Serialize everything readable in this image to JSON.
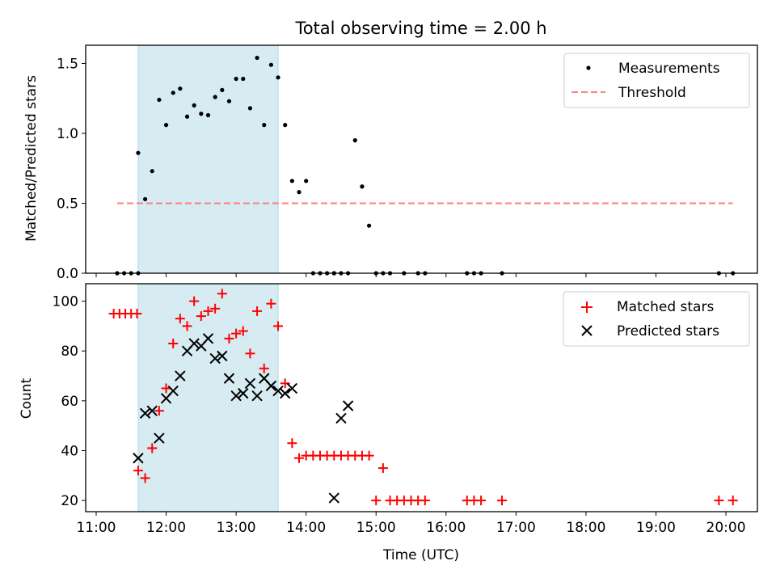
{
  "chart_data": [
    {
      "type": "scatter",
      "title": "Total observing time = 2.00 h",
      "xlabel": "",
      "ylabel": "Matched/Predicted stars",
      "ylim": [
        0.0,
        1.63
      ],
      "yticks": [
        "0.0",
        "0.5",
        "1.0",
        "1.5"
      ],
      "ytick_values": [
        0.0,
        0.5,
        1.0,
        1.5
      ],
      "xtick_hours": [
        11,
        12,
        13,
        14,
        15,
        16,
        17,
        18,
        19,
        20
      ],
      "xlim": [
        "11:00 - 0.15 h",
        "20:00 + 0.45 h"
      ],
      "highlight_span": {
        "from": "11:36",
        "to": "13:36",
        "color": "#add8e6"
      },
      "legend_position": "upper right",
      "series": [
        {
          "name": "Measurements",
          "marker": "dot",
          "color": "#000000",
          "x": [
            "11:18",
            "11:24",
            "11:30",
            "11:36",
            "11:36",
            "11:42",
            "11:48",
            "11:54",
            "12:00",
            "12:06",
            "12:12",
            "12:18",
            "12:24",
            "12:30",
            "12:36",
            "12:42",
            "12:48",
            "12:54",
            "13:00",
            "13:06",
            "13:12",
            "13:18",
            "13:24",
            "13:30",
            "13:36",
            "13:42",
            "13:48",
            "13:54",
            "14:00",
            "14:06",
            "14:12",
            "14:18",
            "14:24",
            "14:24",
            "14:30",
            "14:36",
            "14:42",
            "14:48",
            "14:54",
            "15:00",
            "15:06",
            "15:12",
            "15:24",
            "15:36",
            "15:42",
            "16:18",
            "16:24",
            "16:30",
            "16:48",
            "19:54",
            "20:06"
          ],
          "y": [
            0,
            0,
            0,
            0,
            0.86,
            0.53,
            0.73,
            1.24,
            1.06,
            1.29,
            1.32,
            1.12,
            1.2,
            1.14,
            1.13,
            1.26,
            1.31,
            1.23,
            1.39,
            1.39,
            1.18,
            1.54,
            1.06,
            1.49,
            1.4,
            1.06,
            0.66,
            0.58,
            0.66,
            0,
            0,
            0,
            0,
            0,
            0,
            0,
            0.95,
            0.62,
            0.34,
            0,
            0,
            0,
            0,
            0,
            0,
            0,
            0,
            0,
            0,
            0,
            0
          ]
        },
        {
          "name": "Threshold",
          "line": "dashed",
          "color": "#ff7f7f",
          "x": [
            "11:18",
            "20:06"
          ],
          "y": [
            0.5,
            0.5
          ]
        }
      ]
    },
    {
      "type": "scatter",
      "title": "",
      "xlabel": "Time (UTC)",
      "ylabel": "Count",
      "ylim": [
        15.5,
        107
      ],
      "yticks": [
        "20",
        "40",
        "60",
        "80",
        "100"
      ],
      "ytick_values": [
        20,
        40,
        60,
        80,
        100
      ],
      "xticks": [
        "11:00",
        "12:00",
        "13:00",
        "14:00",
        "15:00",
        "16:00",
        "17:00",
        "18:00",
        "19:00",
        "20:00"
      ],
      "xtick_hours": [
        11,
        12,
        13,
        14,
        15,
        16,
        17,
        18,
        19,
        20
      ],
      "highlight_span": {
        "from": "11:36",
        "to": "13:36",
        "color": "#add8e6"
      },
      "legend_position": "upper right",
      "series": [
        {
          "name": "Matched stars",
          "marker": "plus",
          "color": "#ff0000",
          "x": [
            "11:15",
            "11:20",
            "11:25",
            "11:30",
            "11:35",
            "11:36",
            "11:42",
            "11:48",
            "11:54",
            "12:00",
            "12:06",
            "12:12",
            "12:18",
            "12:24",
            "12:30",
            "12:36",
            "12:42",
            "12:48",
            "12:54",
            "13:00",
            "13:06",
            "13:12",
            "13:18",
            "13:24",
            "13:30",
            "13:36",
            "13:42",
            "13:48",
            "13:54",
            "14:00",
            "14:06",
            "14:12",
            "14:18",
            "14:24",
            "14:30",
            "14:36",
            "14:42",
            "14:48",
            "14:54",
            "15:00",
            "15:06",
            "15:12",
            "15:18",
            "15:24",
            "15:30",
            "15:36",
            "15:42",
            "16:18",
            "16:24",
            "16:30",
            "16:48",
            "19:54",
            "20:06"
          ],
          "y": [
            95,
            95,
            95,
            95,
            95,
            32,
            29,
            41,
            56,
            65,
            83,
            93,
            90,
            100,
            94,
            96,
            97,
            103,
            85,
            87,
            88,
            79,
            96,
            73,
            99,
            90,
            67,
            43,
            37,
            38,
            38,
            38,
            38,
            38,
            38,
            38,
            38,
            38,
            38,
            20,
            33,
            20,
            20,
            20,
            20,
            20,
            20,
            20,
            20,
            20,
            20,
            20,
            20
          ]
        },
        {
          "name": "Predicted stars",
          "marker": "x",
          "color": "#000000",
          "x": [
            "11:36",
            "11:42",
            "11:48",
            "11:54",
            "12:00",
            "12:06",
            "12:12",
            "12:18",
            "12:24",
            "12:30",
            "12:36",
            "12:42",
            "12:48",
            "12:54",
            "13:00",
            "13:06",
            "13:12",
            "13:18",
            "13:24",
            "13:30",
            "13:36",
            "13:42",
            "13:48",
            "14:24",
            "14:30",
            "14:36"
          ],
          "y": [
            37,
            55,
            56,
            45,
            61,
            64,
            70,
            80,
            83,
            82,
            85,
            77,
            78,
            69,
            62,
            63,
            67,
            62,
            69,
            66,
            64,
            63,
            65,
            21,
            53,
            58
          ]
        }
      ]
    }
  ]
}
